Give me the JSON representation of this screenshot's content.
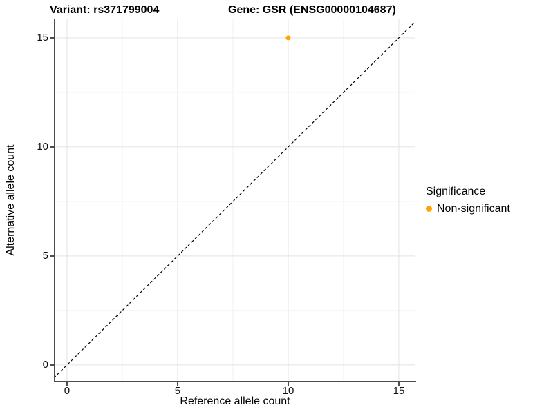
{
  "chart_data": {
    "type": "scatter",
    "title_left": "Variant: rs371799004",
    "title_right": "Gene: GSR (ENSG00000104687)",
    "xlabel": "Reference allele count",
    "ylabel": "Alternative allele count",
    "xlim": [
      -0.53,
      15.72
    ],
    "ylim": [
      -0.73,
      15.85
    ],
    "x_ticks": [
      0,
      5,
      10,
      15
    ],
    "y_ticks": [
      0,
      5,
      10,
      15
    ],
    "x_minor_ticks": [
      2.5,
      7.5,
      12.5
    ],
    "y_minor_ticks": [
      2.5,
      7.5,
      12.5
    ],
    "grid": true,
    "legend_position": "right",
    "points": [
      {
        "x": 10,
        "y": 15,
        "significance": "Non-significant",
        "color": "#FFA500"
      }
    ],
    "reference_line": {
      "slope": 1,
      "intercept": 0,
      "style": "dashed",
      "color": "#000000"
    },
    "legend": {
      "title": "Significance",
      "items": [
        {
          "label": "Non-significant",
          "color": "#FFA500"
        }
      ]
    },
    "colors": {
      "grid_major": "#e3e3e3",
      "grid_minor": "#f1f1f1",
      "axis_line": "#4d4d4d",
      "point": "#FFA500",
      "background": "#ffffff"
    }
  }
}
